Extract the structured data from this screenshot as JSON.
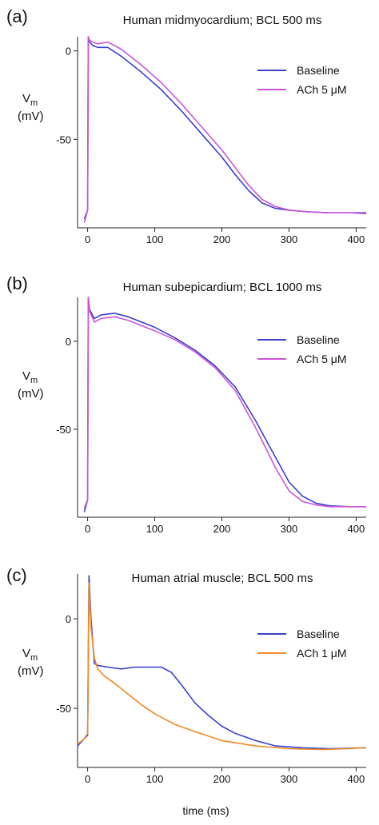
{
  "chart_data": [
    {
      "type": "line",
      "panel_label": "(a)",
      "title": "Human midmyocardium; BCL 500 ms",
      "ylabel": "V",
      "ylabel_sub": "m",
      "ylabel_unit": "(mV)",
      "xlabel": "",
      "xlim": [
        -15,
        415
      ],
      "ylim": [
        -100,
        8
      ],
      "xticks": [
        0,
        100,
        200,
        300,
        400
      ],
      "yticks": [
        0,
        -50
      ],
      "legend": "right",
      "series": [
        {
          "name": "Baseline",
          "color": "#3a3fcf",
          "x": [
            -5,
            0,
            1,
            3,
            8,
            15,
            30,
            50,
            80,
            110,
            140,
            170,
            200,
            220,
            240,
            260,
            280,
            300,
            330,
            360,
            390,
            415
          ],
          "y": [
            -95,
            -90,
            8,
            5,
            3,
            2,
            2,
            -3,
            -12,
            -22,
            -34,
            -47,
            -60,
            -70,
            -79,
            -86,
            -89,
            -90,
            -91,
            -91.5,
            -91.5,
            -91.5
          ]
        },
        {
          "name": "ACh 5 μM",
          "color": "#cc55d6",
          "x": [
            -5,
            0,
            1,
            3,
            8,
            15,
            30,
            50,
            80,
            110,
            140,
            170,
            200,
            220,
            240,
            260,
            280,
            300,
            330,
            360,
            390,
            415
          ],
          "y": [
            -97,
            -90,
            8,
            6,
            5,
            4,
            5,
            1,
            -8,
            -18,
            -30,
            -43,
            -56,
            -66,
            -76,
            -84,
            -88,
            -90,
            -91,
            -91.5,
            -91.5,
            -92
          ]
        }
      ]
    },
    {
      "type": "line",
      "panel_label": "(b)",
      "title": "Human subepicardium; BCL 1000 ms",
      "ylabel": "V",
      "ylabel_sub": "m",
      "ylabel_unit": "(mV)",
      "xlabel": "",
      "xlim": [
        -15,
        415
      ],
      "ylim": [
        -100,
        25
      ],
      "xticks": [
        0,
        100,
        200,
        300,
        400
      ],
      "yticks": [
        0,
        -50
      ],
      "legend": "right",
      "series": [
        {
          "name": "Baseline",
          "color": "#3a3fcf",
          "x": [
            -5,
            0,
            1,
            3,
            10,
            20,
            40,
            60,
            80,
            100,
            130,
            160,
            190,
            220,
            250,
            280,
            300,
            320,
            340,
            360,
            390,
            415
          ],
          "y": [
            -97,
            -90,
            25,
            18,
            13,
            15,
            16,
            14,
            11,
            8,
            2,
            -5,
            -14,
            -26,
            -45,
            -66,
            -80,
            -88,
            -92,
            -93.5,
            -94,
            -94
          ]
        },
        {
          "name": "ACh 5 μM",
          "color": "#cc55d6",
          "x": [
            -5,
            0,
            1,
            3,
            10,
            20,
            40,
            60,
            80,
            100,
            130,
            160,
            190,
            220,
            250,
            280,
            300,
            320,
            340,
            360,
            390,
            415
          ],
          "y": [
            -95,
            -90,
            25,
            17,
            11,
            13,
            14,
            12,
            9,
            6,
            1,
            -6,
            -15,
            -28,
            -49,
            -72,
            -85,
            -91,
            -93,
            -94,
            -94,
            -94
          ]
        }
      ]
    },
    {
      "type": "line",
      "panel_label": "(c)",
      "title": "Human atrial muscle; BCL 500 ms",
      "ylabel": "V",
      "ylabel_sub": "m",
      "ylabel_unit": "(mV)",
      "xlabel": "time (ms)",
      "xlim": [
        -15,
        415
      ],
      "ylim": [
        -83,
        25
      ],
      "xticks": [
        0,
        100,
        200,
        300,
        400
      ],
      "yticks": [
        0,
        -50
      ],
      "legend": "right",
      "series": [
        {
          "name": "Baseline",
          "color": "#3a3fcf",
          "x": [
            -15,
            -5,
            0,
            2,
            5,
            10,
            15,
            30,
            50,
            70,
            90,
            110,
            125,
            140,
            160,
            180,
            200,
            220,
            250,
            280,
            320,
            360,
            415
          ],
          "y": [
            -71,
            -67,
            -65,
            24,
            0,
            -25,
            -26,
            -27,
            -28,
            -27,
            -27,
            -27,
            -30,
            -37,
            -47,
            -54,
            -60,
            -64,
            -68,
            -71,
            -72,
            -72.5,
            -72
          ]
        },
        {
          "name": "ACh 1 μM",
          "color": "#f08a24",
          "x": [
            -15,
            -5,
            0,
            2,
            5,
            10,
            15,
            25,
            40,
            60,
            80,
            100,
            130,
            160,
            200,
            250,
            300,
            350,
            415
          ],
          "y": [
            -70,
            -67,
            -64,
            20,
            -5,
            -22,
            -28,
            -32,
            -36,
            -42,
            -48,
            -53,
            -59,
            -63,
            -68,
            -71,
            -72.5,
            -73,
            -72
          ]
        }
      ]
    }
  ]
}
